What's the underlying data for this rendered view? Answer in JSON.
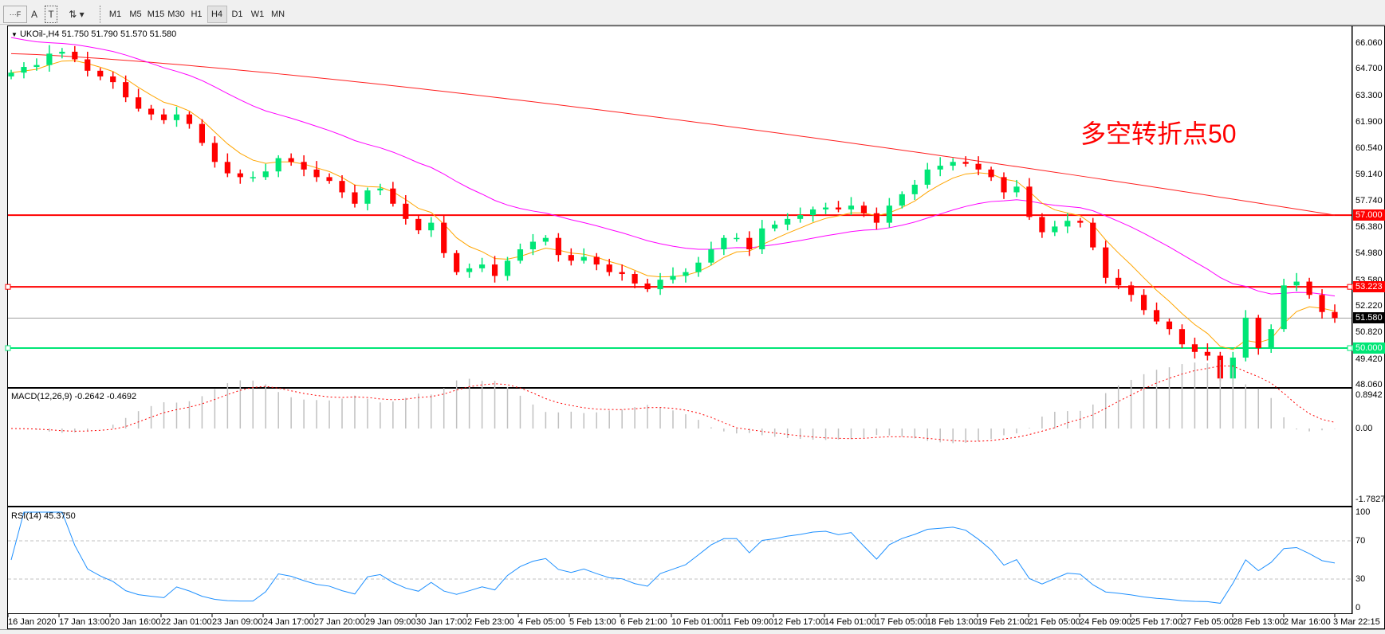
{
  "toolbar": {
    "tools": [
      {
        "name": "grid-icon",
        "glyph": "⋯F"
      },
      {
        "name": "text-icon",
        "glyph": "A"
      },
      {
        "name": "text-label-icon",
        "glyph": "T"
      },
      {
        "name": "arrows-icon",
        "glyph": "⇅ ▾"
      }
    ],
    "timeframes": [
      "M1",
      "M5",
      "M15",
      "M30",
      "H1",
      "H4",
      "D1",
      "W1",
      "MN"
    ],
    "active_timeframe": "H4"
  },
  "main": {
    "symbol_legend": "UKOil-,H4  51.750 51.790 51.570 51.580",
    "annotation": "多空转折点50",
    "annotation_color": "#ff0000",
    "price_labels": [
      "66.060",
      "64.700",
      "63.300",
      "61.900",
      "60.540",
      "59.140",
      "57.740",
      "56.380",
      "54.980",
      "53.580",
      "52.220",
      "50.820",
      "49.420",
      "48.060"
    ],
    "hlines": [
      {
        "label": "57.000",
        "value": 57.0,
        "color": "#ff0000"
      },
      {
        "label": "53.223",
        "value": 53.223,
        "color": "#ff0000"
      },
      {
        "label": "51.580",
        "value": 51.58,
        "color": "#000000",
        "line": "#a0a0a0"
      },
      {
        "label": "50.000",
        "value": 50.0,
        "color": "#00e676"
      }
    ],
    "bull_color": "#00e676",
    "bear_color": "#ff0000"
  },
  "macd": {
    "legend": "MACD(12,26,9) -0.2642 -0.4692",
    "labels": [
      "0.8942",
      "0.00",
      "-1.7827"
    ]
  },
  "rsi": {
    "legend": "RSI(14) 45.3750",
    "labels": [
      "100",
      "70",
      "30",
      "0"
    ]
  },
  "time_labels": [
    "16 Jan 2020",
    "17 Jan 13:00",
    "20 Jan 16:00",
    "22 Jan 01:00",
    "23 Jan 09:00",
    "24 Jan 17:00",
    "27 Jan 20:00",
    "29 Jan 09:00",
    "30 Jan 17:00",
    "2 Feb 23:00",
    "4 Feb 05:00",
    "5 Feb 13:00",
    "6 Feb 21:00",
    "10 Feb 01:00",
    "11 Feb 09:00",
    "12 Feb 17:00",
    "14 Feb 01:00",
    "17 Feb 05:00",
    "18 Feb 13:00",
    "19 Feb 21:00",
    "21 Feb 05:00",
    "24 Feb 09:00",
    "25 Feb 17:00",
    "27 Feb 05:00",
    "28 Feb 13:00",
    "2 Mar 16:00",
    "3 Mar 22:15"
  ],
  "chart_data": {
    "type": "candlestick",
    "ylim": [
      48.06,
      66.06
    ],
    "closes": [
      64.5,
      64.8,
      64.9,
      65.5,
      65.6,
      65.2,
      64.6,
      64.3,
      64.0,
      63.2,
      62.6,
      62.3,
      62.0,
      62.3,
      61.8,
      60.8,
      59.8,
      59.2,
      59.0,
      59.0,
      59.3,
      60.0,
      59.8,
      59.4,
      59.0,
      58.8,
      58.2,
      57.6,
      58.3,
      58.4,
      57.6,
      56.8,
      56.2,
      56.6,
      55.0,
      54.0,
      54.2,
      54.4,
      53.8,
      54.6,
      55.2,
      55.6,
      55.8,
      54.9,
      54.6,
      54.8,
      54.4,
      54.0,
      53.9,
      53.4,
      53.1,
      53.6,
      53.8,
      54.0,
      54.5,
      55.2,
      55.8,
      55.8,
      55.2,
      56.3,
      56.5,
      56.8,
      57.0,
      57.3,
      57.4,
      57.3,
      57.5,
      57.1,
      56.6,
      57.5,
      58.1,
      58.6,
      59.4,
      59.6,
      59.8,
      59.7,
      59.4,
      59.0,
      58.2,
      58.5,
      56.9,
      56.1,
      56.4,
      56.7,
      56.6,
      55.3,
      53.7,
      53.3,
      52.8,
      52.0,
      51.4,
      51.0,
      50.2,
      49.8,
      49.6,
      48.4,
      49.5,
      51.6,
      50.0,
      51.0,
      53.3,
      53.5,
      52.8,
      51.9,
      51.58
    ]
  }
}
